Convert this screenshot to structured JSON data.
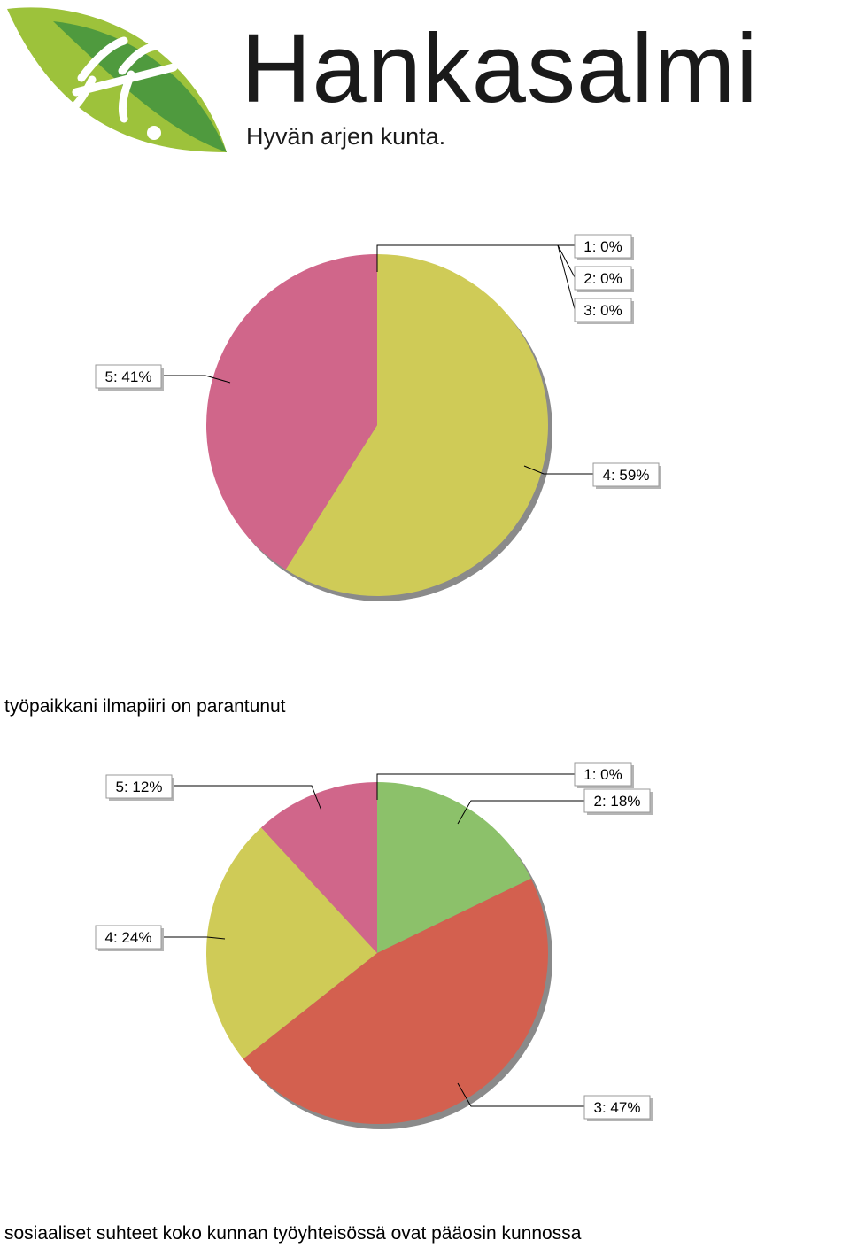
{
  "header": {
    "logo_icon": "hankasalmi-leaf-logo",
    "brand_name": "Hankasalmi",
    "slogan": "Hyvän arjen kunta."
  },
  "colors": {
    "1": "#8cc16a",
    "2": "#8cc16a",
    "3": "#d3604f",
    "4": "#cfcb57",
    "5": "#d0668a"
  },
  "chart_data": [
    {
      "type": "pie",
      "title": "",
      "slices": [
        {
          "key": "1",
          "label": "1: 0%",
          "value": 0
        },
        {
          "key": "2",
          "label": "2: 0%",
          "value": 0
        },
        {
          "key": "3",
          "label": "3: 0%",
          "value": 0
        },
        {
          "key": "4",
          "label": "4: 59%",
          "value": 59
        },
        {
          "key": "5",
          "label": "5: 41%",
          "value": 41
        }
      ]
    },
    {
      "type": "pie",
      "title": "työpaikkani ilmapiiri on parantunut",
      "slices": [
        {
          "key": "1",
          "label": "1: 0%",
          "value": 0
        },
        {
          "key": "2",
          "label": "2: 18%",
          "value": 18
        },
        {
          "key": "3",
          "label": "3: 47%",
          "value": 47
        },
        {
          "key": "4",
          "label": "4: 24%",
          "value": 24
        },
        {
          "key": "5",
          "label": "5: 12%",
          "value": 12
        }
      ]
    }
  ],
  "footer": {
    "caption": "sosiaaliset suhteet koko kunnan työyhteisössä ovat pääosin kunnossa"
  }
}
